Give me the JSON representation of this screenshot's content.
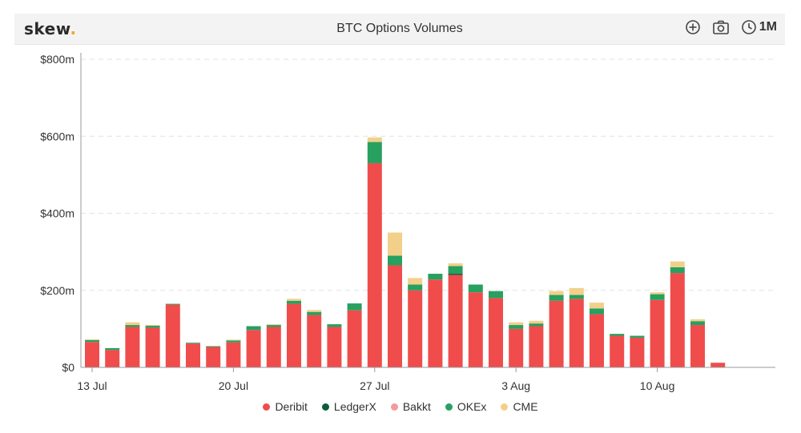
{
  "header": {
    "logo_text": "skew",
    "logo_dot": ".",
    "title": "BTC Options Volumes",
    "range_label": "1M",
    "icons": [
      "zoom-in-icon",
      "camera-icon",
      "clock-icon"
    ]
  },
  "colors": {
    "Deribit": "#f04c4c",
    "LedgerX": "#0f5c3a",
    "Bakkt": "#f39a9a",
    "OKEx": "#27a060",
    "CME": "#f2d08a",
    "grid": "#e3e3e3",
    "axis": "#999999"
  },
  "chart_data": {
    "type": "bar",
    "stacked": true,
    "title": "BTC Options Volumes",
    "xlabel": "",
    "ylabel": "",
    "ylim": [
      0,
      800
    ],
    "y_unit": "$m",
    "y_ticks": [
      "$0",
      "$200m",
      "$400m",
      "$600m",
      "$800m"
    ],
    "x_tick_labels": [
      {
        "label": "13 Jul",
        "category": "2020-07-13"
      },
      {
        "label": "20 Jul",
        "category": "2020-07-20"
      },
      {
        "label": "27 Jul",
        "category": "2020-07-27"
      },
      {
        "label": "3 Aug",
        "category": "2020-08-03"
      },
      {
        "label": "10 Aug",
        "category": "2020-08-10"
      }
    ],
    "grid": true,
    "legend_position": "bottom",
    "categories": [
      "2020-07-13",
      "2020-07-14",
      "2020-07-15",
      "2020-07-16",
      "2020-07-17",
      "2020-07-18",
      "2020-07-19",
      "2020-07-20",
      "2020-07-21",
      "2020-07-22",
      "2020-07-23",
      "2020-07-24",
      "2020-07-25",
      "2020-07-26",
      "2020-07-27",
      "2020-07-28",
      "2020-07-29",
      "2020-07-30",
      "2020-07-31",
      "2020-08-01",
      "2020-08-02",
      "2020-08-03",
      "2020-08-04",
      "2020-08-05",
      "2020-08-06",
      "2020-08-07",
      "2020-08-08",
      "2020-08-09",
      "2020-08-10",
      "2020-08-11",
      "2020-08-12",
      "2020-08-13"
    ],
    "series": [
      {
        "name": "Deribit",
        "values": [
          66,
          45,
          105,
          103,
          163,
          62,
          53,
          65,
          97,
          105,
          165,
          136,
          105,
          148,
          530,
          265,
          200,
          228,
          240,
          195,
          180,
          100,
          107,
          173,
          178,
          138,
          82,
          77,
          175,
          245,
          110,
          12
        ]
      },
      {
        "name": "LedgerX",
        "values": [
          0,
          0,
          0,
          0,
          0,
          0,
          0,
          0,
          0,
          0,
          0,
          0,
          0,
          0,
          0,
          0,
          0,
          0,
          3,
          0,
          0,
          0,
          0,
          0,
          0,
          0,
          0,
          0,
          0,
          0,
          0,
          0
        ]
      },
      {
        "name": "Bakkt",
        "values": [
          0,
          0,
          0,
          0,
          0,
          0,
          0,
          0,
          0,
          0,
          0,
          0,
          0,
          0,
          0,
          0,
          0,
          0,
          0,
          0,
          0,
          0,
          0,
          0,
          0,
          0,
          0,
          0,
          0,
          0,
          0,
          0
        ]
      },
      {
        "name": "OKEx",
        "values": [
          5,
          5,
          5,
          5,
          2,
          2,
          2,
          5,
          10,
          5,
          8,
          8,
          7,
          18,
          55,
          25,
          15,
          15,
          20,
          20,
          18,
          10,
          7,
          15,
          10,
          15,
          5,
          5,
          15,
          15,
          10,
          0
        ]
      },
      {
        "name": "CME",
        "values": [
          2,
          0,
          7,
          2,
          0,
          0,
          0,
          2,
          0,
          2,
          5,
          5,
          0,
          0,
          12,
          60,
          17,
          0,
          7,
          0,
          0,
          7,
          7,
          10,
          18,
          15,
          0,
          0,
          5,
          15,
          5,
          0
        ]
      }
    ]
  }
}
